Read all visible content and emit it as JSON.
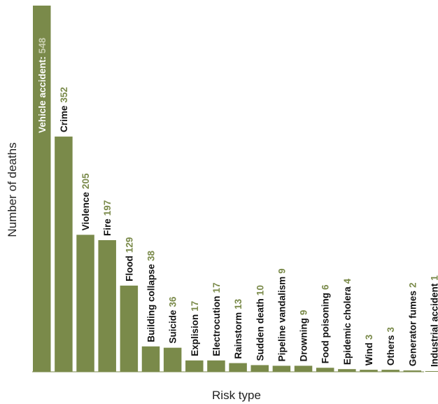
{
  "chart_data": {
    "type": "bar",
    "xlabel": "Risk type",
    "ylabel": "Number of deaths",
    "ylim": [
      0,
      548
    ],
    "grid": false,
    "bar_color": "#7a8a4a",
    "value_label_color": "#7a8a4a",
    "categories": [
      "Vehicle accident:",
      "Crime",
      "Violence",
      "Fire",
      "Flood",
      "Building collapse",
      "Suicide",
      "Explision",
      "Electrocution",
      "Rainstorm",
      "Sudden death",
      "Pipeline vandalism",
      "Drowning",
      "Food poisoning",
      "Epidemic cholera",
      "Wind",
      "Others",
      "Generator fumes",
      "Industrial accident"
    ],
    "values": [
      548,
      352,
      205,
      197,
      129,
      38,
      36,
      17,
      17,
      13,
      10,
      9,
      9,
      6,
      4,
      3,
      3,
      2,
      1
    ]
  }
}
